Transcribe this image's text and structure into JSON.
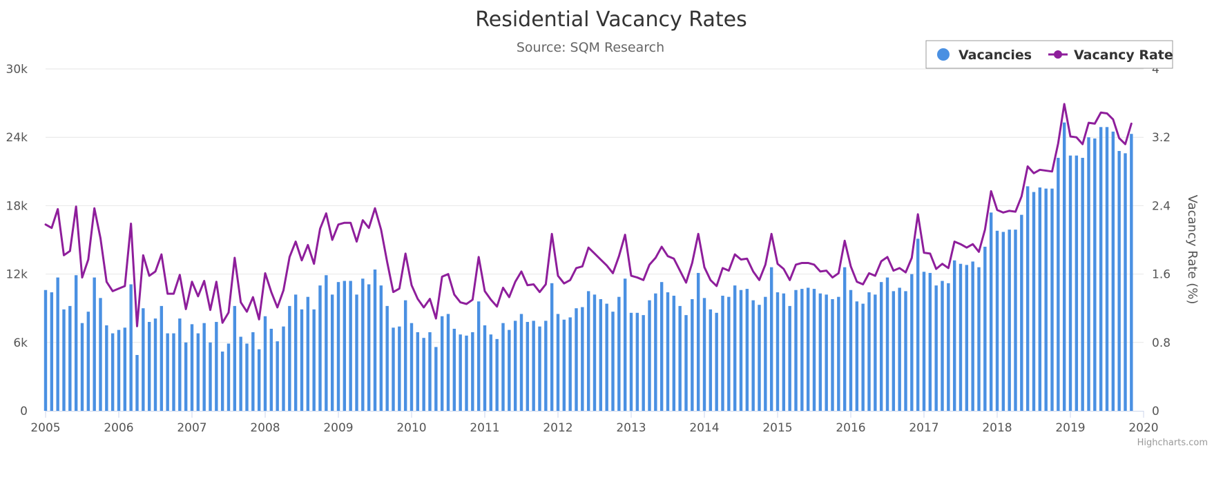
{
  "chart_data": {
    "type": "bar",
    "title": "Residential Vacancy Rates",
    "subtitle": "Source: SQM Research",
    "credits": "Highcharts.com",
    "x_start": 2005,
    "x_end": 2020,
    "x_ticks": [
      "2005",
      "2006",
      "2007",
      "2008",
      "2009",
      "2010",
      "2011",
      "2012",
      "2013",
      "2014",
      "2015",
      "2016",
      "2017",
      "2018",
      "2019",
      "2020"
    ],
    "y_left": {
      "min": 0,
      "max": 30000,
      "ticks": [
        "0",
        "6k",
        "12k",
        "18k",
        "24k",
        "30k"
      ],
      "tick_values": [
        0,
        6000,
        12000,
        18000,
        24000,
        30000
      ],
      "label": ""
    },
    "y_right": {
      "min": 0,
      "max": 4,
      "ticks": [
        "0",
        "0.8",
        "1.6",
        "2.4",
        "3.2",
        "4"
      ],
      "tick_values": [
        0,
        0.8,
        1.6,
        2.4,
        3.2,
        4
      ],
      "label": "Vacancy Rate (%)"
    },
    "grid": true,
    "legend_position": "top-right",
    "colors": {
      "vacancies": "#4a90e2",
      "vacancy_rate": "#8e1e9b",
      "grid": "#e6e6e6",
      "axis": "#ccd6eb"
    },
    "series": [
      {
        "name": "Vacancies",
        "type": "bar",
        "axis": "left",
        "values": [
          10600,
          10400,
          11700,
          8900,
          9200,
          11900,
          7700,
          8700,
          11700,
          9900,
          7500,
          6800,
          7100,
          7300,
          11100,
          4900,
          9000,
          7800,
          8100,
          9200,
          6800,
          6800,
          8100,
          6000,
          7600,
          6800,
          7700,
          6000,
          7800,
          5200,
          5900,
          9200,
          6500,
          5900,
          6900,
          5400,
          8300,
          7200,
          6100,
          7400,
          9200,
          10200,
          8900,
          10000,
          8900,
          11000,
          11900,
          10200,
          11300,
          11400,
          11400,
          10200,
          11600,
          11100,
          12400,
          11000,
          9200,
          7300,
          7400,
          9700,
          7700,
          6900,
          6400,
          6900,
          5600,
          8300,
          8500,
          7200,
          6700,
          6600,
          6900,
          9600,
          7500,
          6700,
          6300,
          7700,
          7100,
          7900,
          8500,
          7800,
          7900,
          7400,
          7900,
          11200,
          8500,
          8000,
          8200,
          9000,
          9100,
          10500,
          10200,
          9800,
          9400,
          8700,
          10000,
          11600,
          8600,
          8600,
          8400,
          9700,
          10300,
          11300,
          10400,
          10100,
          9200,
          8400,
          9800,
          12100,
          9900,
          8900,
          8600,
          10100,
          10000,
          11000,
          10600,
          10700,
          9700,
          9300,
          10000,
          12600,
          10400,
          10300,
          9200,
          10600,
          10700,
          10800,
          10700,
          10300,
          10200,
          9800,
          10000,
          12600,
          10600,
          9600,
          9400,
          10400,
          10200,
          11300,
          11700,
          10500,
          10800,
          10500,
          12000,
          15100,
          12200,
          12100,
          11000,
          11400,
          11200,
          13200,
          12900,
          12800,
          13100,
          12600,
          14400,
          17400,
          15800,
          15700,
          15900,
          15900,
          17200,
          19700,
          19200,
          19600,
          19500,
          19500,
          22200,
          25300,
          22400,
          22400,
          22200,
          24000,
          23900,
          24900,
          24900,
          24500,
          22800,
          22600,
          24300
        ]
      },
      {
        "name": "Vacancy Rate",
        "type": "line",
        "axis": "right",
        "values": [
          2.18,
          2.14,
          2.36,
          1.82,
          1.87,
          2.39,
          1.56,
          1.77,
          2.37,
          2.02,
          1.51,
          1.4,
          1.43,
          1.46,
          2.19,
          0.99,
          1.82,
          1.58,
          1.63,
          1.83,
          1.37,
          1.37,
          1.59,
          1.19,
          1.51,
          1.34,
          1.52,
          1.18,
          1.51,
          1.03,
          1.15,
          1.79,
          1.27,
          1.16,
          1.33,
          1.07,
          1.61,
          1.39,
          1.21,
          1.41,
          1.8,
          1.98,
          1.76,
          1.94,
          1.72,
          2.13,
          2.31,
          2.0,
          2.18,
          2.2,
          2.2,
          1.98,
          2.23,
          2.14,
          2.37,
          2.12,
          1.74,
          1.39,
          1.43,
          1.84,
          1.47,
          1.31,
          1.21,
          1.31,
          1.08,
          1.57,
          1.6,
          1.36,
          1.27,
          1.25,
          1.3,
          1.8,
          1.4,
          1.3,
          1.22,
          1.44,
          1.33,
          1.51,
          1.63,
          1.47,
          1.48,
          1.39,
          1.48,
          2.07,
          1.58,
          1.49,
          1.53,
          1.67,
          1.69,
          1.91,
          1.84,
          1.77,
          1.7,
          1.61,
          1.81,
          2.06,
          1.58,
          1.56,
          1.53,
          1.71,
          1.79,
          1.92,
          1.81,
          1.78,
          1.64,
          1.5,
          1.73,
          2.07,
          1.68,
          1.53,
          1.46,
          1.67,
          1.64,
          1.83,
          1.77,
          1.78,
          1.63,
          1.53,
          1.71,
          2.07,
          1.72,
          1.66,
          1.53,
          1.71,
          1.73,
          1.73,
          1.71,
          1.63,
          1.64,
          1.56,
          1.61,
          1.99,
          1.69,
          1.51,
          1.48,
          1.61,
          1.58,
          1.75,
          1.8,
          1.64,
          1.67,
          1.62,
          1.79,
          2.3,
          1.85,
          1.84,
          1.66,
          1.72,
          1.67,
          1.98,
          1.95,
          1.91,
          1.95,
          1.86,
          2.12,
          2.57,
          2.35,
          2.32,
          2.34,
          2.33,
          2.51,
          2.86,
          2.78,
          2.82,
          2.81,
          2.8,
          3.13,
          3.59,
          3.21,
          3.2,
          3.12,
          3.37,
          3.36,
          3.49,
          3.48,
          3.41,
          3.19,
          3.12,
          3.36
        ]
      }
    ]
  },
  "legend": [
    {
      "label": "Vacancies",
      "icon": "circle-icon",
      "color": "#4a90e2"
    },
    {
      "label": "Vacancy Rate",
      "icon": "line-marker-icon",
      "color": "#8e1e9b"
    }
  ]
}
